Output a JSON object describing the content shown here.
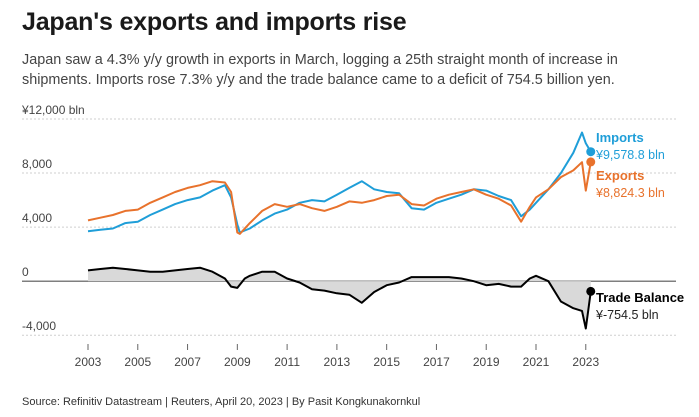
{
  "title": "Japan's exports and imports rise",
  "subtitle": "Japan saw a 4.3% y/y growth in exports in March, logging a 25th straight month of increase in shipments. Imports rose 7.3% y/y and the trade balance came to a deficit of 754.5 billion yen.",
  "source": "Source: Refinitiv Datastream | Reuters, April 20, 2023 | By Pasit Kongkunakornkul",
  "colors": {
    "imports": "#1f9ed8",
    "exports": "#e8722c",
    "balance": "#000000",
    "balance_fill": "#d9d9d9"
  },
  "chart_data": {
    "type": "line",
    "x_unit": "year",
    "xlim": [
      2003,
      2023.25
    ],
    "x_ticks": [
      "2003",
      "2005",
      "2007",
      "2009",
      "2011",
      "2013",
      "2015",
      "2017",
      "2019",
      "2021",
      "2023"
    ],
    "ylim": [
      -4500,
      12000
    ],
    "y_ticks": [
      {
        "value": 12000,
        "label": "¥12,000 bln"
      },
      {
        "value": 8000,
        "label": "8,000"
      },
      {
        "value": 4000,
        "label": "4,000"
      },
      {
        "value": 0,
        "label": "0"
      },
      {
        "value": -4000,
        "label": "-4,000"
      }
    ],
    "series": [
      {
        "name": "Imports",
        "last_value_label": "¥9,578.8 bln",
        "x": [
          2003.0,
          2003.5,
          2004.0,
          2004.5,
          2005.0,
          2005.5,
          2006.0,
          2006.5,
          2007.0,
          2007.5,
          2008.0,
          2008.5,
          2008.75,
          2009.0,
          2009.1,
          2009.5,
          2010.0,
          2010.5,
          2011.0,
          2011.5,
          2012.0,
          2012.5,
          2013.0,
          2013.5,
          2014.0,
          2014.5,
          2015.0,
          2015.5,
          2016.0,
          2016.5,
          2017.0,
          2017.5,
          2018.0,
          2018.5,
          2019.0,
          2019.5,
          2020.0,
          2020.4,
          2020.75,
          2021.0,
          2021.5,
          2022.0,
          2022.5,
          2022.85,
          2023.0,
          2023.2
        ],
        "values": [
          3700,
          3800,
          3900,
          4300,
          4400,
          4900,
          5300,
          5700,
          6000,
          6200,
          6700,
          7100,
          6200,
          4200,
          3600,
          3900,
          4500,
          5000,
          5300,
          5800,
          6000,
          5900,
          6400,
          6900,
          7400,
          6800,
          6600,
          6500,
          5400,
          5300,
          5800,
          6100,
          6400,
          6800,
          6700,
          6300,
          6000,
          4800,
          5300,
          5800,
          6800,
          8000,
          9500,
          11000,
          10200,
          9578.8
        ]
      },
      {
        "name": "Exports",
        "last_value_label": "¥8,824.3 bln",
        "x": [
          2003.0,
          2003.5,
          2004.0,
          2004.5,
          2005.0,
          2005.5,
          2006.0,
          2006.5,
          2007.0,
          2007.5,
          2008.0,
          2008.5,
          2008.75,
          2009.0,
          2009.1,
          2009.5,
          2010.0,
          2010.5,
          2011.0,
          2011.5,
          2012.0,
          2012.5,
          2013.0,
          2013.5,
          2014.0,
          2014.5,
          2015.0,
          2015.5,
          2016.0,
          2016.5,
          2017.0,
          2017.5,
          2018.0,
          2018.5,
          2019.0,
          2019.5,
          2020.0,
          2020.4,
          2020.75,
          2021.0,
          2021.5,
          2022.0,
          2022.5,
          2022.85,
          2023.0,
          2023.2
        ],
        "values": [
          4500,
          4700,
          4900,
          5200,
          5300,
          5800,
          6200,
          6600,
          6900,
          7100,
          7400,
          7300,
          6600,
          3600,
          3500,
          4300,
          5200,
          5700,
          5500,
          5700,
          5400,
          5200,
          5500,
          5900,
          5800,
          6000,
          6300,
          6400,
          5700,
          5600,
          6100,
          6400,
          6600,
          6800,
          6400,
          6100,
          5600,
          4400,
          5500,
          6200,
          6800,
          7700,
          8200,
          8800,
          6700,
          8824.3
        ]
      },
      {
        "name": "Trade Balance",
        "last_value_label": "¥-754.5 bln",
        "x": [
          2003.0,
          2003.5,
          2004.0,
          2004.5,
          2005.0,
          2005.5,
          2006.0,
          2006.5,
          2007.0,
          2007.5,
          2008.0,
          2008.5,
          2008.75,
          2009.0,
          2009.3,
          2009.5,
          2010.0,
          2010.5,
          2011.0,
          2011.5,
          2012.0,
          2012.5,
          2013.0,
          2013.5,
          2014.0,
          2014.5,
          2015.0,
          2015.5,
          2016.0,
          2016.5,
          2017.0,
          2017.5,
          2018.0,
          2018.5,
          2019.0,
          2019.5,
          2020.0,
          2020.4,
          2020.75,
          2021.0,
          2021.5,
          2022.0,
          2022.5,
          2022.85,
          2023.0,
          2023.2
        ],
        "values": [
          800,
          900,
          1000,
          900,
          800,
          700,
          700,
          800,
          900,
          1000,
          700,
          200,
          -400,
          -500,
          200,
          400,
          700,
          700,
          200,
          -100,
          -600,
          -700,
          -900,
          -1000,
          -1600,
          -800,
          -300,
          -100,
          300,
          300,
          300,
          300,
          200,
          0,
          -300,
          -200,
          -400,
          -400,
          200,
          400,
          0,
          -1500,
          -2000,
          -2200,
          -3500,
          -754.5
        ]
      }
    ]
  }
}
